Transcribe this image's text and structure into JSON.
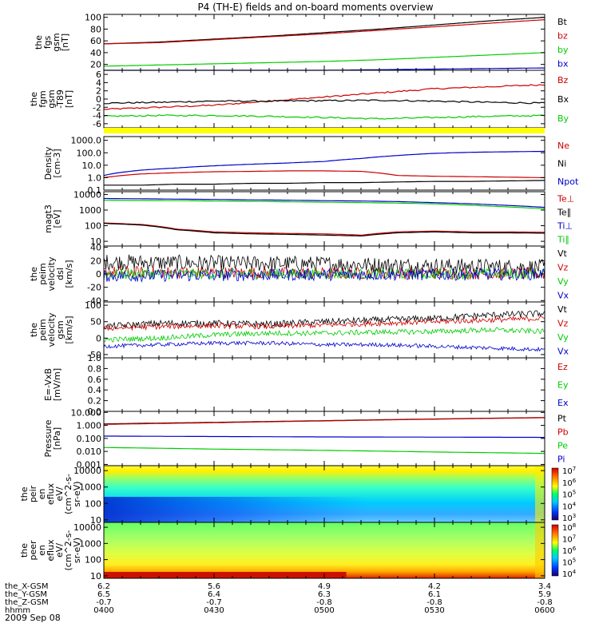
{
  "title": "P4 (TH-E) fields and on-board moments overview",
  "date": "2009 Sep 08",
  "colors": {
    "black": "#000000",
    "red": "#cc0000",
    "green": "#00cc00",
    "blue": "#0000cc",
    "yellow": "#ffff00"
  },
  "chart_data": [
    {
      "type": "line",
      "panel": "fgs",
      "ylabel": [
        "the",
        "fgs",
        "gsm",
        "[nT]"
      ],
      "yticks": [
        "20",
        "40",
        "60",
        "80",
        "100"
      ],
      "ylim": [
        10,
        105
      ],
      "x_hours": [
        4.0,
        4.25,
        4.5,
        4.75,
        5.0,
        5.25,
        5.5,
        5.75,
        6.0
      ],
      "series": [
        {
          "name": "Bt",
          "color": "#000000",
          "values": [
            55,
            58,
            63,
            68,
            74,
            80,
            87,
            94,
            100
          ]
        },
        {
          "name": "bz",
          "color": "#cc0000",
          "values": [
            55,
            57,
            62,
            67,
            72,
            78,
            84,
            90,
            96
          ]
        },
        {
          "name": "by",
          "color": "#00cc00",
          "values": [
            17,
            19,
            21,
            23,
            25,
            28,
            32,
            36,
            40
          ]
        },
        {
          "name": "bx",
          "color": "#0000cc",
          "values": [
            10,
            9,
            8,
            9,
            10,
            11,
            12,
            13,
            14
          ]
        }
      ]
    },
    {
      "type": "line",
      "panel": "fgm-t89",
      "ylabel": [
        "the",
        "fgm",
        "gsm",
        "-T89",
        "[nT]"
      ],
      "yticks": [
        "-6",
        "-4",
        "-2",
        "0",
        "2",
        "4",
        "6"
      ],
      "ylim": [
        -7,
        7
      ],
      "x_hours": [
        4.0,
        4.25,
        4.5,
        4.75,
        5.0,
        5.25,
        5.5,
        5.75,
        6.0
      ],
      "series": [
        {
          "name": "Bz",
          "color": "#cc0000",
          "values": [
            -2.5,
            -2.0,
            -1.5,
            -0.5,
            0.5,
            1.5,
            2.5,
            3.0,
            3.5
          ]
        },
        {
          "name": "Bx",
          "color": "#000000",
          "values": [
            -1.0,
            -0.8,
            -0.5,
            -0.5,
            -0.4,
            -0.3,
            -0.5,
            -0.8,
            -1.0
          ]
        },
        {
          "name": "By",
          "color": "#00cc00",
          "values": [
            -4.2,
            -4.0,
            -4.0,
            -4.2,
            -4.5,
            -4.8,
            -4.5,
            -4.2,
            -4.0
          ]
        }
      ]
    },
    {
      "type": "line",
      "panel": "density",
      "scale": "log",
      "ylabel": [
        "Density",
        "[cm-3]"
      ],
      "yticks": [
        "0.1",
        "1.0",
        "10.0",
        "100.0",
        "1000.0"
      ],
      "ylim": [
        0.1,
        2000
      ],
      "x_hours": [
        4.0,
        4.17,
        4.33,
        4.5,
        4.67,
        4.83,
        5.0,
        5.17,
        5.33,
        5.5,
        5.67,
        5.83,
        6.0
      ],
      "series": [
        {
          "name": "Ne",
          "color": "#cc0000",
          "values": [
            1.0,
            2.0,
            2.5,
            3.0,
            3.2,
            3.5,
            3.5,
            3.2,
            1.5,
            1.3,
            1.2,
            1.1,
            1.0
          ]
        },
        {
          "name": "Ni",
          "color": "#000000",
          "values": [
            0.25,
            0.25,
            0.3,
            0.3,
            0.35,
            0.35,
            0.4,
            0.4,
            0.45,
            0.5,
            0.5,
            0.55,
            0.6
          ]
        },
        {
          "name": "Npot",
          "color": "#0000cc",
          "values": [
            1.5,
            4.0,
            6.0,
            9.0,
            12.0,
            15.0,
            20.0,
            35.0,
            60.0,
            90.0,
            110.0,
            120.0,
            130.0
          ]
        }
      ]
    },
    {
      "type": "line",
      "panel": "temperature",
      "scale": "log",
      "ylabel": [
        "magt3",
        "[eV]"
      ],
      "yticks": [
        "10",
        "100",
        "1000",
        "10000"
      ],
      "ylim": [
        5,
        15000
      ],
      "x_hours": [
        4.0,
        4.17,
        4.33,
        4.5,
        4.67,
        4.83,
        5.0,
        5.17,
        5.33,
        5.5,
        5.67,
        5.83,
        6.0
      ],
      "series": [
        {
          "name": "Te⊥",
          "color": "#cc0000",
          "values": [
            150,
            120,
            60,
            40,
            35,
            32,
            30,
            25,
            40,
            45,
            40,
            40,
            38
          ]
        },
        {
          "name": "Te∥",
          "color": "#000000",
          "values": [
            140,
            110,
            55,
            35,
            30,
            28,
            25,
            22,
            35,
            40,
            35,
            35,
            33
          ]
        },
        {
          "name": "Ti⊥",
          "color": "#0000cc",
          "values": [
            5500,
            5300,
            5000,
            4800,
            4500,
            4300,
            4000,
            3800,
            3500,
            3000,
            2500,
            2000,
            1500
          ]
        },
        {
          "name": "Ti∥",
          "color": "#00cc00",
          "values": [
            4200,
            4100,
            4000,
            3800,
            3600,
            3400,
            3200,
            3000,
            2800,
            2500,
            2000,
            1600,
            1200
          ]
        }
      ]
    },
    {
      "type": "line",
      "panel": "peim-velocity-dsl",
      "ylabel": [
        "the",
        "peim",
        "velocity",
        "dsl",
        "[km/s]"
      ],
      "yticks": [
        "-40",
        "-20",
        "0",
        "20",
        "40"
      ],
      "ylim": [
        -42,
        42
      ],
      "x_hours": [
        4.0,
        4.5,
        5.0,
        5.5,
        6.0
      ],
      "series": [
        {
          "name": "Vt",
          "color": "#000000",
          "values": [
            18,
            16,
            15,
            12,
            10
          ]
        },
        {
          "name": "Vz",
          "color": "#cc0000",
          "values": [
            3,
            2,
            1,
            1,
            0
          ]
        },
        {
          "name": "Vy",
          "color": "#00cc00",
          "values": [
            0,
            0,
            0,
            0,
            0
          ]
        },
        {
          "name": "Vx",
          "color": "#0000cc",
          "values": [
            -3,
            -2,
            -1,
            -1,
            0
          ]
        }
      ]
    },
    {
      "type": "line",
      "panel": "peim-velocity-gsm",
      "ylabel": [
        "the",
        "peim",
        "velocity",
        "gsm",
        "[km/s]"
      ],
      "yticks": [
        "-50",
        "0",
        "50",
        "100"
      ],
      "ylim": [
        -60,
        110
      ],
      "x_hours": [
        4.0,
        4.25,
        4.5,
        4.75,
        5.0,
        5.25,
        5.5,
        5.75,
        6.0
      ],
      "series": [
        {
          "name": "Vt",
          "color": "#000000",
          "values": [
            35,
            45,
            45,
            42,
            50,
            55,
            60,
            70,
            75
          ]
        },
        {
          "name": "Vz",
          "color": "#cc0000",
          "values": [
            30,
            35,
            38,
            35,
            40,
            45,
            50,
            55,
            60
          ]
        },
        {
          "name": "Vy",
          "color": "#00cc00",
          "values": [
            -5,
            0,
            10,
            15,
            15,
            18,
            20,
            25,
            20
          ]
        },
        {
          "name": "Vx",
          "color": "#0000cc",
          "values": [
            -25,
            -20,
            -15,
            -15,
            -20,
            -20,
            -25,
            -30,
            -35
          ]
        }
      ]
    },
    {
      "type": "line",
      "panel": "efield",
      "ylabel": [
        "E=-VxB",
        "[mV/m]"
      ],
      "yticks": [
        "0.0",
        "0.2",
        "0.4",
        "0.6",
        "0.8",
        "1.0"
      ],
      "ylim": [
        0,
        1
      ],
      "x_hours": [],
      "series": [
        {
          "name": "Ez",
          "color": "#cc0000",
          "values": []
        },
        {
          "name": "Ey",
          "color": "#00cc00",
          "values": []
        },
        {
          "name": "Ex",
          "color": "#0000cc",
          "values": []
        }
      ]
    },
    {
      "type": "line",
      "panel": "pressure",
      "scale": "log",
      "ylabel": [
        "Pressure",
        "[nPa]"
      ],
      "yticks": [
        "0.001",
        "0.010",
        "0.100",
        "1.000",
        "10.000"
      ],
      "ylim": [
        0.0008,
        12
      ],
      "x_hours": [
        4.0,
        4.5,
        5.0,
        5.5,
        6.0
      ],
      "series": [
        {
          "name": "Pt",
          "color": "#000000",
          "values": [
            1.3,
            1.7,
            2.3,
            3.1,
            4.0
          ]
        },
        {
          "name": "Pb",
          "color": "#cc0000",
          "values": [
            1.2,
            1.6,
            2.2,
            3.0,
            3.9
          ]
        },
        {
          "name": "Pe",
          "color": "#00cc00",
          "values": [
            0.02,
            0.015,
            0.012,
            0.009,
            0.007
          ]
        },
        {
          "name": "Pi",
          "color": "#0000cc",
          "values": [
            0.15,
            0.14,
            0.13,
            0.125,
            0.12
          ]
        }
      ]
    },
    {
      "type": "heatmap",
      "panel": "peir-en-eflux",
      "ylabel": [
        "the",
        "peir",
        "en",
        "eflux",
        "eV/",
        "(cm^2-s-",
        "sr-eV)"
      ],
      "yticks": [
        "10",
        "100",
        "1000",
        "10000"
      ],
      "colorbar_ticks": [
        "10^3",
        "10^4",
        "10^5",
        "10^6",
        "10^7"
      ]
    },
    {
      "type": "heatmap",
      "panel": "peer-en-eflux",
      "ylabel": [
        "the",
        "peer",
        "en",
        "eflux",
        "eV/",
        "(cm^2-s-",
        "sr-eV)"
      ],
      "yticks": [
        "10",
        "100",
        "1000",
        "10000"
      ],
      "colorbar_ticks": [
        "10^4",
        "10^5",
        "10^6",
        "10^7",
        "10^8"
      ]
    }
  ],
  "position_table": {
    "rows": [
      {
        "label": "the_X-GSM",
        "values": [
          "6.2",
          "5.6",
          "4.9",
          "4.2",
          "3.4"
        ]
      },
      {
        "label": "the_Y-GSM",
        "values": [
          "6.5",
          "6.4",
          "6.3",
          "6.1",
          "5.9"
        ]
      },
      {
        "label": "the_Z-GSM",
        "values": [
          "-0.7",
          "-0.7",
          "-0.8",
          "-0.8",
          "-0.8"
        ]
      },
      {
        "label": "hhmm",
        "values": [
          "0400",
          "0430",
          "0500",
          "0530",
          "0600"
        ]
      }
    ]
  }
}
